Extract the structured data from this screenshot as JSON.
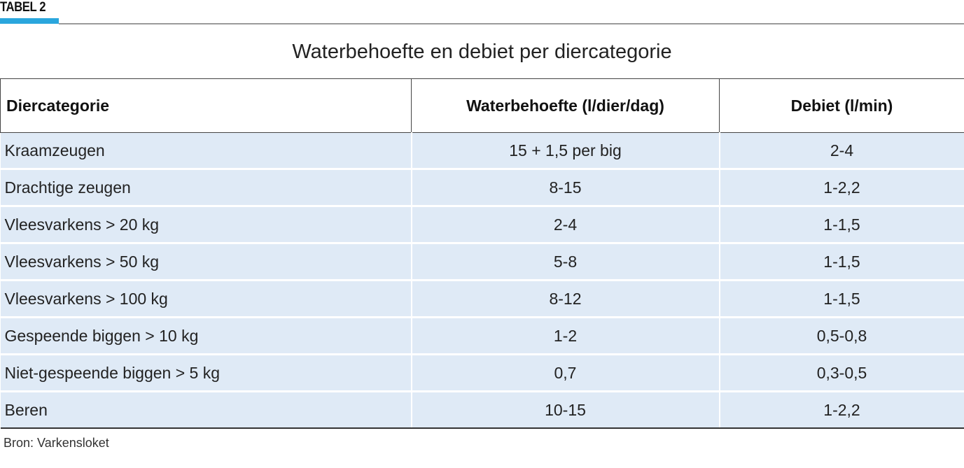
{
  "header": {
    "label": "TABEL 2",
    "accent_color": "#2aa6dd"
  },
  "title": "Waterbehoefte en debiet per diercategorie",
  "table": {
    "columns": [
      "Diercategorie",
      "Waterbehoefte (l/dier/dag)",
      "Debiet (l/min)"
    ],
    "rows": [
      [
        "Kraamzeugen",
        "15 + 1,5 per big",
        "2-4"
      ],
      [
        "Drachtige zeugen",
        "8-15",
        "1-2,2"
      ],
      [
        " Vleesvarkens > 20 kg",
        "2-4",
        "1-1,5"
      ],
      [
        "Vleesvarkens > 50 kg",
        "5-8",
        "1-1,5"
      ],
      [
        "Vleesvarkens > 100 kg",
        "8-12",
        "1-1,5"
      ],
      [
        "Gespeende biggen > 10 kg",
        "1-2",
        "0,5-0,8"
      ],
      [
        "Niet-gespeende biggen > 5 kg",
        "0,7",
        "0,3-0,5"
      ],
      [
        "Beren",
        "10-15",
        "1-2,2"
      ]
    ],
    "row_color": "#dfeaf6"
  },
  "source": "Bron: Varkensloket"
}
